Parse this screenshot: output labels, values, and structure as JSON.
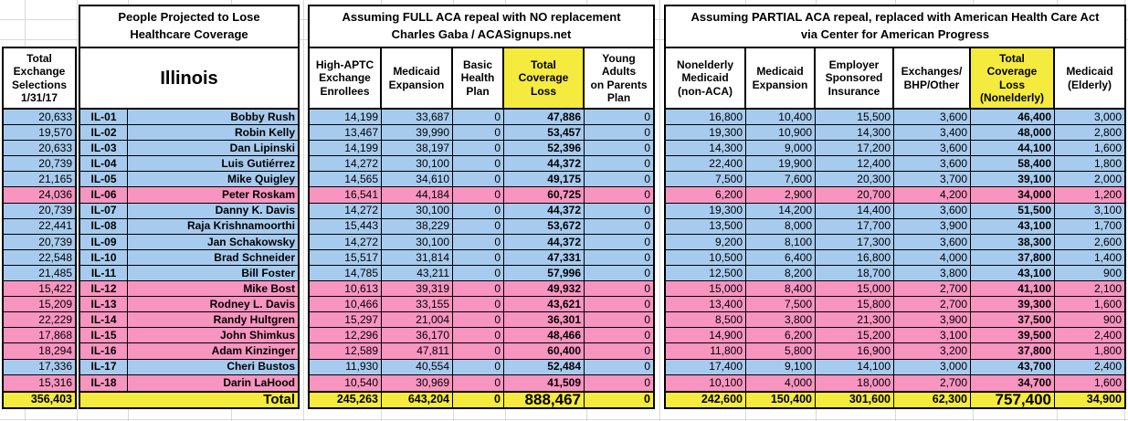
{
  "colors": {
    "dem_blue": "#A7CBEE",
    "rep_pink": "#F794C0",
    "highlight_yellow": "#F5EA3E"
  },
  "left_column": {
    "header": "Total\nExchange\nSelections\n1/31/17",
    "total": "356,403"
  },
  "state_section": {
    "title": "People Projected to Lose\nHealthcare Coverage",
    "state_label": "Illinois",
    "total_label": "Total"
  },
  "full_repeal": {
    "title": "Assuming FULL ACA repeal with NO replacement\nCharles Gaba / ACASignups.net",
    "columns": [
      "High-APTC\nExchange\nEnrollees",
      "Medicaid\nExpansion",
      "Basic\nHealth\nPlan",
      "Total\nCoverage\nLoss",
      "Young\nAdults\non Parents\nPlan"
    ],
    "highlight_column_index": 3,
    "totals": [
      "245,263",
      "643,204",
      "0",
      "888,467",
      "0"
    ]
  },
  "partial_repeal": {
    "title": "Assuming PARTIAL ACA repeal, replaced with American Health Care Act\nvia Center for American Progress",
    "columns": [
      "Nonelderly\nMedicaid\n(non-ACA)",
      "Medicaid\nExpansion",
      "Employer\nSponsored\nInsurance",
      "Exchanges/\nBHP/Other",
      "Total\nCoverage\nLoss\n(Nonelderly)",
      "Medicaid\n(Elderly)"
    ],
    "highlight_column_index": 4,
    "totals": [
      "242,600",
      "150,400",
      "301,600",
      "62,300",
      "757,400",
      "34,900"
    ]
  },
  "rows": [
    {
      "district": "IL-01",
      "name": "Bobby Rush",
      "party": "dem",
      "exchange_selections": "20,633",
      "full": [
        "14,199",
        "33,687",
        "0",
        "47,886",
        "0"
      ],
      "partial": [
        "16,800",
        "10,400",
        "15,500",
        "3,600",
        "46,400",
        "3,000"
      ]
    },
    {
      "district": "IL-02",
      "name": "Robin Kelly",
      "party": "dem",
      "exchange_selections": "19,570",
      "full": [
        "13,467",
        "39,990",
        "0",
        "53,457",
        "0"
      ],
      "partial": [
        "19,300",
        "10,900",
        "14,300",
        "3,400",
        "48,000",
        "2,800"
      ]
    },
    {
      "district": "IL-03",
      "name": "Dan Lipinski",
      "party": "dem",
      "exchange_selections": "20,633",
      "full": [
        "14,199",
        "38,197",
        "0",
        "52,396",
        "0"
      ],
      "partial": [
        "14,300",
        "9,000",
        "17,200",
        "3,600",
        "44,100",
        "1,600"
      ]
    },
    {
      "district": "IL-04",
      "name": "Luis Gutiérrez",
      "party": "dem",
      "exchange_selections": "20,739",
      "full": [
        "14,272",
        "30,100",
        "0",
        "44,372",
        "0"
      ],
      "partial": [
        "22,400",
        "19,900",
        "12,400",
        "3,600",
        "58,400",
        "1,800"
      ]
    },
    {
      "district": "IL-05",
      "name": "Mike Quigley",
      "party": "dem",
      "exchange_selections": "21,165",
      "full": [
        "14,565",
        "34,610",
        "0",
        "49,175",
        "0"
      ],
      "partial": [
        "7,500",
        "7,600",
        "20,300",
        "3,700",
        "39,100",
        "2,000"
      ]
    },
    {
      "district": "IL-06",
      "name": "Peter Roskam",
      "party": "rep",
      "exchange_selections": "24,036",
      "full": [
        "16,541",
        "44,184",
        "0",
        "60,725",
        "0"
      ],
      "partial": [
        "6,200",
        "2,900",
        "20,700",
        "4,200",
        "34,000",
        "1,200"
      ]
    },
    {
      "district": "IL-07",
      "name": "Danny K. Davis",
      "party": "dem",
      "exchange_selections": "20,739",
      "full": [
        "14,272",
        "30,100",
        "0",
        "44,372",
        "0"
      ],
      "partial": [
        "19,300",
        "14,200",
        "14,400",
        "3,600",
        "51,500",
        "3,100"
      ]
    },
    {
      "district": "IL-08",
      "name": "Raja Krishnamoorthi",
      "party": "dem",
      "exchange_selections": "22,441",
      "full": [
        "15,443",
        "38,229",
        "0",
        "53,672",
        "0"
      ],
      "partial": [
        "13,500",
        "8,000",
        "17,700",
        "3,900",
        "43,100",
        "1,700"
      ]
    },
    {
      "district": "IL-09",
      "name": "Jan Schakowsky",
      "party": "dem",
      "exchange_selections": "20,739",
      "full": [
        "14,272",
        "30,100",
        "0",
        "44,372",
        "0"
      ],
      "partial": [
        "9,200",
        "8,100",
        "17,300",
        "3,600",
        "38,300",
        "2,600"
      ]
    },
    {
      "district": "IL-10",
      "name": "Brad Schneider",
      "party": "dem",
      "exchange_selections": "22,548",
      "full": [
        "15,517",
        "31,814",
        "0",
        "47,331",
        "0"
      ],
      "partial": [
        "10,500",
        "6,400",
        "16,800",
        "4,000",
        "37,800",
        "1,400"
      ]
    },
    {
      "district": "IL-11",
      "name": "Bill Foster",
      "party": "dem",
      "exchange_selections": "21,485",
      "full": [
        "14,785",
        "43,211",
        "0",
        "57,996",
        "0"
      ],
      "partial": [
        "12,500",
        "8,200",
        "18,700",
        "3,800",
        "43,100",
        "900"
      ]
    },
    {
      "district": "IL-12",
      "name": "Mike Bost",
      "party": "rep",
      "exchange_selections": "15,422",
      "full": [
        "10,613",
        "39,319",
        "0",
        "49,932",
        "0"
      ],
      "partial": [
        "15,000",
        "8,400",
        "15,000",
        "2,700",
        "41,100",
        "2,100"
      ]
    },
    {
      "district": "IL-13",
      "name": "Rodney L. Davis",
      "party": "rep",
      "exchange_selections": "15,209",
      "full": [
        "10,466",
        "33,155",
        "0",
        "43,621",
        "0"
      ],
      "partial": [
        "13,400",
        "7,500",
        "15,800",
        "2,700",
        "39,300",
        "1,600"
      ]
    },
    {
      "district": "IL-14",
      "name": "Randy Hultgren",
      "party": "rep",
      "exchange_selections": "22,229",
      "full": [
        "15,297",
        "21,004",
        "0",
        "36,301",
        "0"
      ],
      "partial": [
        "8,500",
        "3,800",
        "21,300",
        "3,900",
        "37,500",
        "900"
      ]
    },
    {
      "district": "IL-15",
      "name": "John Shimkus",
      "party": "rep",
      "exchange_selections": "17,868",
      "full": [
        "12,296",
        "36,170",
        "0",
        "48,466",
        "0"
      ],
      "partial": [
        "14,900",
        "6,200",
        "15,200",
        "3,100",
        "39,500",
        "2,400"
      ]
    },
    {
      "district": "IL-16",
      "name": "Adam Kinzinger",
      "party": "rep",
      "exchange_selections": "18,294",
      "full": [
        "12,589",
        "47,811",
        "0",
        "60,400",
        "0"
      ],
      "partial": [
        "11,800",
        "5,800",
        "16,900",
        "3,200",
        "37,800",
        "1,800"
      ]
    },
    {
      "district": "IL-17",
      "name": "Cheri Bustos",
      "party": "dem",
      "exchange_selections": "17,336",
      "full": [
        "11,930",
        "40,554",
        "0",
        "52,484",
        "0"
      ],
      "partial": [
        "17,400",
        "9,100",
        "14,100",
        "3,000",
        "43,700",
        "2,400"
      ]
    },
    {
      "district": "IL-18",
      "name": "Darin LaHood",
      "party": "rep",
      "exchange_selections": "15,316",
      "full": [
        "10,540",
        "30,969",
        "0",
        "41,509",
        "0"
      ],
      "partial": [
        "10,100",
        "4,000",
        "18,000",
        "2,700",
        "34,700",
        "1,600"
      ]
    }
  ]
}
